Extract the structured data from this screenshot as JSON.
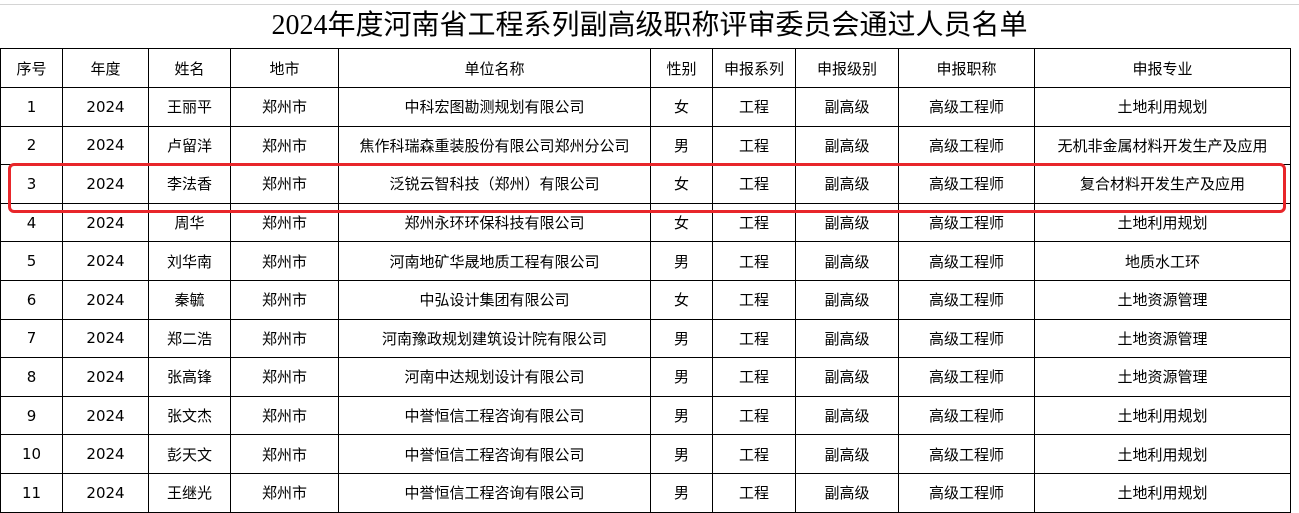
{
  "title": "2024年度河南省工程系列副高级职称评审委员会通过人员名单",
  "columns": [
    "序号",
    "年度",
    "姓名",
    "地市",
    "单位名称",
    "性别",
    "申报系列",
    "申报级别",
    "申报职称",
    "申报专业"
  ],
  "rows": [
    [
      "1",
      "2024",
      "王丽平",
      "郑州市",
      "中科宏图勘测规划有限公司",
      "女",
      "工程",
      "副高级",
      "高级工程师",
      "土地利用规划"
    ],
    [
      "2",
      "2024",
      "卢留洋",
      "郑州市",
      "焦作科瑞森重装股份有限公司郑州分公司",
      "男",
      "工程",
      "副高级",
      "高级工程师",
      "无机非金属材料开发生产及应用"
    ],
    [
      "3",
      "2024",
      "李法香",
      "郑州市",
      "泛锐云智科技（郑州）有限公司",
      "女",
      "工程",
      "副高级",
      "高级工程师",
      "复合材料开发生产及应用"
    ],
    [
      "4",
      "2024",
      "周华",
      "郑州市",
      "郑州永环环保科技有限公司",
      "女",
      "工程",
      "副高级",
      "高级工程师",
      "土地利用规划"
    ],
    [
      "5",
      "2024",
      "刘华南",
      "郑州市",
      "河南地矿华晟地质工程有限公司",
      "男",
      "工程",
      "副高级",
      "高级工程师",
      "地质水工环"
    ],
    [
      "6",
      "2024",
      "秦毓",
      "郑州市",
      "中弘设计集团有限公司",
      "女",
      "工程",
      "副高级",
      "高级工程师",
      "土地资源管理"
    ],
    [
      "7",
      "2024",
      "郑二浩",
      "郑州市",
      "河南豫政规划建筑设计院有限公司",
      "男",
      "工程",
      "副高级",
      "高级工程师",
      "土地资源管理"
    ],
    [
      "8",
      "2024",
      "张高锋",
      "郑州市",
      "河南中达规划设计有限公司",
      "男",
      "工程",
      "副高级",
      "高级工程师",
      "土地资源管理"
    ],
    [
      "9",
      "2024",
      "张文杰",
      "郑州市",
      "中誉恒信工程咨询有限公司",
      "男",
      "工程",
      "副高级",
      "高级工程师",
      "土地利用规划"
    ],
    [
      "10",
      "2024",
      "彭天文",
      "郑州市",
      "中誉恒信工程咨询有限公司",
      "男",
      "工程",
      "副高级",
      "高级工程师",
      "土地利用规划"
    ],
    [
      "11",
      "2024",
      "王继光",
      "郑州市",
      "中誉恒信工程咨询有限公司",
      "男",
      "工程",
      "副高级",
      "高级工程师",
      "土地利用规划"
    ]
  ],
  "highlight_row": 3,
  "highlight_color": "#e8262a"
}
